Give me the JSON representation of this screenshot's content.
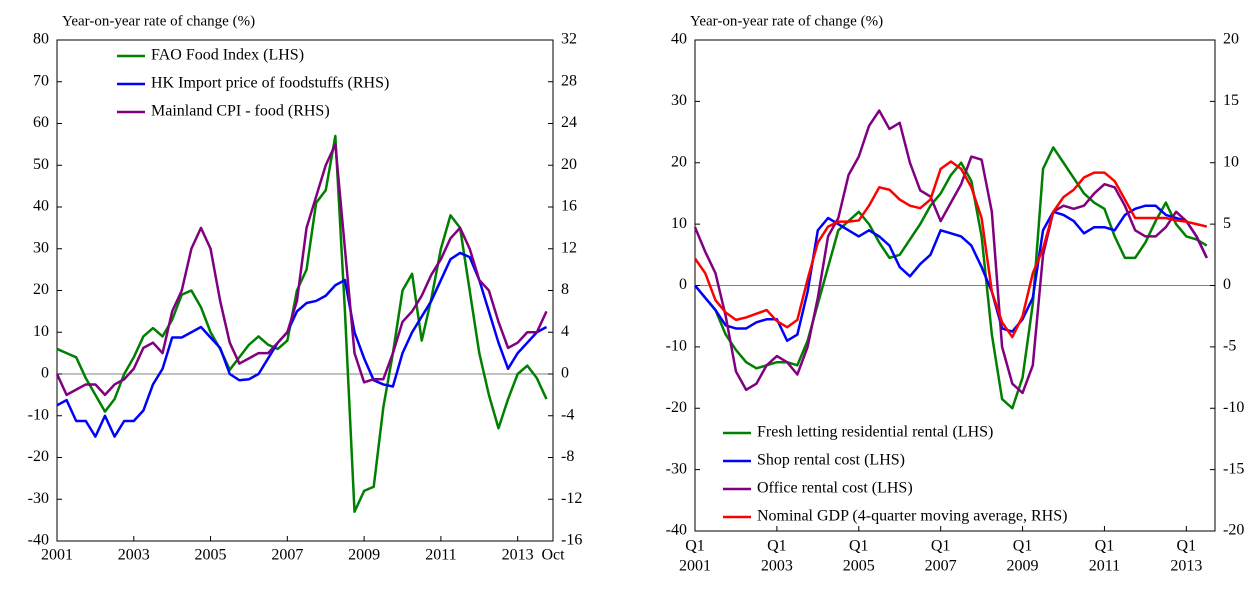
{
  "chart_data": [
    {
      "type": "line",
      "ylabel": "Year-on-year rate of change (%)",
      "x": [
        2001,
        2001.25,
        2001.5,
        2001.75,
        2002,
        2002.25,
        2002.5,
        2002.75,
        2003,
        2003.25,
        2003.5,
        2003.75,
        2004,
        2004.25,
        2004.5,
        2004.75,
        2005,
        2005.25,
        2005.5,
        2005.75,
        2006,
        2006.25,
        2006.5,
        2006.75,
        2007,
        2007.25,
        2007.5,
        2007.75,
        2008,
        2008.25,
        2008.5,
        2008.75,
        2009,
        2009.25,
        2009.5,
        2009.75,
        2010,
        2010.25,
        2010.5,
        2010.75,
        2011,
        2011.25,
        2011.5,
        2011.75,
        2012,
        2012.25,
        2012.5,
        2012.75,
        2013,
        2013.25,
        2013.5,
        2013.75
      ],
      "xlim": [
        2001,
        2013.92
      ],
      "xticks": [
        2001,
        2003,
        2005,
        2007,
        2009,
        2011,
        2013,
        {
          "value": 2013.92,
          "label": "Oct"
        }
      ],
      "ylim": [
        -40,
        80
      ],
      "yticks": [
        -40,
        -30,
        -20,
        -10,
        0,
        10,
        20,
        30,
        40,
        50,
        60,
        70,
        80
      ],
      "y2lim": [
        -16,
        32
      ],
      "y2ticks": [
        -16,
        -12,
        -8,
        -4,
        0,
        4,
        8,
        12,
        16,
        20,
        24,
        28,
        32
      ],
      "legend": "upper left",
      "grid": false,
      "series": [
        {
          "name": "FAO Food Index (LHS)",
          "color": "#008000",
          "axis": "y",
          "values": [
            6,
            5,
            4,
            -1,
            -5,
            -9,
            -6,
            0,
            4,
            9,
            11,
            9,
            13,
            19,
            20,
            16,
            10,
            6,
            1,
            4,
            7,
            9,
            7,
            6,
            8,
            20,
            25,
            41,
            44,
            57,
            15,
            -33,
            -28,
            -27,
            -8,
            5,
            20,
            24,
            8,
            18,
            30,
            38,
            35,
            20,
            5,
            -5,
            -13,
            -6,
            0,
            2,
            -1,
            -6
          ]
        },
        {
          "name": "HK Import price of foodstuffs  (RHS)",
          "color": "#0000ff",
          "axis": "y2",
          "values": [
            -3,
            -2.5,
            -4.5,
            -4.5,
            -6,
            -4,
            -6,
            -4.5,
            -4.5,
            -3.5,
            -1,
            0.5,
            3.5,
            3.5,
            4,
            4.5,
            3.5,
            2.5,
            0,
            -0.6,
            -0.5,
            0,
            1.5,
            3,
            4,
            6,
            6.8,
            7,
            7.5,
            8.5,
            9,
            4,
            1.5,
            -0.6,
            -1,
            -1.2,
            2,
            4,
            5.5,
            7,
            9,
            11,
            11.6,
            11.2,
            9,
            6,
            3,
            0.5,
            2,
            3,
            4,
            4.5
          ]
        },
        {
          "name": "Mainland CPI - food (RHS)",
          "color": "#800080",
          "axis": "y2",
          "values": [
            0,
            -2,
            -1.5,
            -1,
            -1,
            -2,
            -1,
            -0.5,
            0.5,
            2.5,
            3,
            2,
            6,
            8,
            12,
            14,
            12,
            7,
            3,
            1,
            1.5,
            2,
            2,
            3,
            4,
            7,
            14,
            17,
            20,
            22,
            12,
            2,
            -0.8,
            -0.5,
            -0.5,
            2,
            5,
            6,
            7.5,
            9.5,
            11,
            13,
            14,
            12,
            9,
            8,
            5,
            2.5,
            3,
            4,
            4,
            6
          ]
        }
      ]
    },
    {
      "type": "line",
      "ylabel": "Year-on-year rate of change (%)",
      "x": [
        2001,
        2001.25,
        2001.5,
        2001.75,
        2002,
        2002.25,
        2002.5,
        2002.75,
        2003,
        2003.25,
        2003.5,
        2003.75,
        2004,
        2004.25,
        2004.5,
        2004.75,
        2005,
        2005.25,
        2005.5,
        2005.75,
        2006,
        2006.25,
        2006.5,
        2006.75,
        2007,
        2007.25,
        2007.5,
        2007.75,
        2008,
        2008.25,
        2008.5,
        2008.75,
        2009,
        2009.25,
        2009.5,
        2009.75,
        2010,
        2010.25,
        2010.5,
        2010.75,
        2011,
        2011.25,
        2011.5,
        2011.75,
        2012,
        2012.25,
        2012.5,
        2012.75,
        2013,
        2013.25,
        2013.5
      ],
      "xlim": [
        2001,
        2013.7
      ],
      "xticks": [
        {
          "value": 2001,
          "label": [
            "Q1",
            "2001"
          ]
        },
        {
          "value": 2003,
          "label": [
            "Q1",
            "2003"
          ]
        },
        {
          "value": 2005,
          "label": [
            "Q1",
            "2005"
          ]
        },
        {
          "value": 2007,
          "label": [
            "Q1",
            "2007"
          ]
        },
        {
          "value": 2009,
          "label": [
            "Q1",
            "2009"
          ]
        },
        {
          "value": 2011,
          "label": [
            "Q1",
            "2011"
          ]
        },
        {
          "value": 2013,
          "label": [
            "Q1",
            "2013"
          ]
        }
      ],
      "ylim": [
        -40,
        40
      ],
      "yticks": [
        -40,
        -30,
        -20,
        -10,
        0,
        10,
        20,
        30,
        40
      ],
      "y2lim": [
        -20,
        20
      ],
      "y2ticks": [
        -20,
        -15,
        -10,
        -5,
        0,
        5,
        10,
        15,
        20
      ],
      "legend": "lower left",
      "grid": false,
      "series": [
        {
          "name": "Fresh letting residential rental (LHS)",
          "color": "#008000",
          "axis": "y",
          "values": [
            0,
            -2,
            -4,
            -8,
            -10.5,
            -12.5,
            -13.5,
            -13,
            -12.5,
            -12.5,
            -13,
            -9,
            -3,
            3,
            9,
            10.5,
            12,
            10,
            7,
            4.5,
            5,
            7.5,
            10,
            13,
            15,
            18,
            20,
            17,
            8,
            -8,
            -18.5,
            -20,
            -15,
            -3,
            19,
            22.5,
            20,
            17.5,
            15,
            13.5,
            12.5,
            8,
            4.5,
            4.5,
            7,
            10.5,
            13.5,
            10,
            8,
            7.5,
            6.5
          ]
        },
        {
          "name": "Shop rental cost (LHS)",
          "color": "#0000ff",
          "axis": "y",
          "values": [
            0,
            -2,
            -4,
            -6.5,
            -7,
            -7,
            -6,
            -5.5,
            -5.5,
            -9,
            -8,
            -1,
            9,
            11,
            10,
            9,
            8,
            9,
            8,
            6.5,
            3,
            1.5,
            3.5,
            5,
            9,
            8.5,
            8,
            6.5,
            3,
            -1,
            -7,
            -7.5,
            -5.5,
            -2,
            9,
            12,
            11.5,
            10.5,
            8.5,
            9.5,
            9.5,
            9,
            11.5,
            12.5,
            13,
            13,
            11.5,
            11,
            10.5,
            8,
            4.5
          ]
        },
        {
          "name": "Office rental cost (LHS)",
          "color": "#800080",
          "axis": "y",
          "values": [
            9.5,
            5.5,
            2,
            -5,
            -14,
            -17,
            -16,
            -13,
            -11.5,
            -12.5,
            -14.5,
            -10,
            -2,
            8,
            11,
            18,
            21,
            26,
            28.5,
            25.5,
            26.5,
            20,
            15.5,
            14.5,
            10.5,
            13.5,
            16.5,
            21,
            20.5,
            12,
            -10,
            -16,
            -17.5,
            -13,
            5,
            12,
            13,
            12.5,
            13,
            15,
            16.5,
            16,
            13,
            9,
            8,
            8,
            9.5,
            12,
            10.5,
            8,
            4.5
          ]
        },
        {
          "name": "Nominal GDP (4-quarter moving average, RHS)",
          "color": "#ff0000",
          "axis": "y2",
          "values": [
            2.2,
            1,
            -1.2,
            -2.2,
            -2.8,
            -2.6,
            -2.3,
            -2,
            -2.9,
            -3.4,
            -2.8,
            0.5,
            3.5,
            4.8,
            5.2,
            5.2,
            5.3,
            6.5,
            8,
            7.8,
            7,
            6.5,
            6.3,
            7,
            9.5,
            10.1,
            9.5,
            8,
            5.5,
            -0.5,
            -3,
            -4.2,
            -2.5,
            1,
            3,
            6,
            7.2,
            7.8,
            8.8,
            9.2,
            9.2,
            8.5,
            7,
            5.5,
            5.5,
            5.5,
            5.5,
            5.3,
            5.2,
            5,
            4.8
          ]
        }
      ]
    }
  ]
}
